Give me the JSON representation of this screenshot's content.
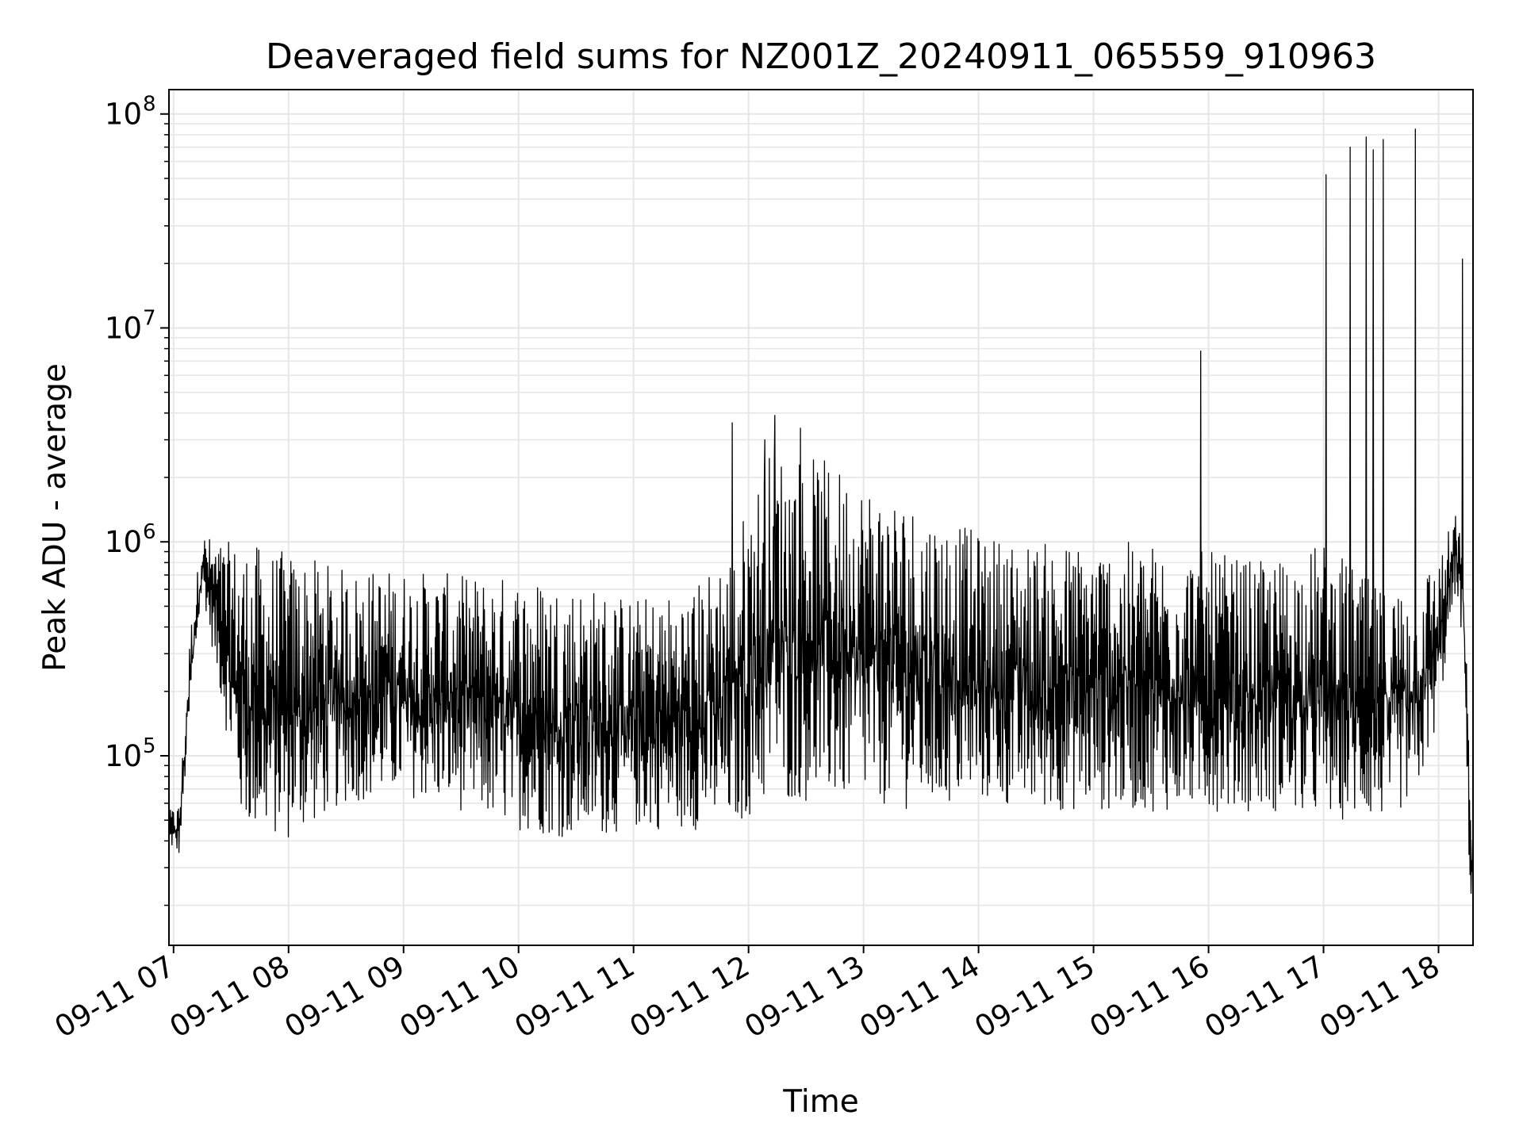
{
  "chart_data": {
    "type": "line",
    "title": "Deaveraged field sums for NZ001Z_20240911_065559_910963",
    "xlabel": "Time",
    "ylabel": "Peak ADU - average",
    "yscale": "log",
    "ylim": [
      13000,
      130000000
    ],
    "xlim_hours": [
      6.96,
      18.3
    ],
    "grid": true,
    "legend": "none",
    "line_color": "#000000",
    "x_ticks": [
      {
        "hour": 7,
        "label": "09-11 07"
      },
      {
        "hour": 8,
        "label": "09-11 08"
      },
      {
        "hour": 9,
        "label": "09-11 09"
      },
      {
        "hour": 10,
        "label": "09-11 10"
      },
      {
        "hour": 11,
        "label": "09-11 11"
      },
      {
        "hour": 12,
        "label": "09-11 12"
      },
      {
        "hour": 13,
        "label": "09-11 13"
      },
      {
        "hour": 14,
        "label": "09-11 14"
      },
      {
        "hour": 15,
        "label": "09-11 15"
      },
      {
        "hour": 16,
        "label": "09-11 16"
      },
      {
        "hour": 17,
        "label": "09-11 17"
      },
      {
        "hour": 18,
        "label": "09-11 18"
      }
    ],
    "y_ticks": [
      {
        "value": 100000,
        "base": "10",
        "exp": "5"
      },
      {
        "value": 1000000,
        "base": "10",
        "exp": "6"
      },
      {
        "value": 10000000,
        "base": "10",
        "exp": "7"
      },
      {
        "value": 100000000,
        "base": "10",
        "exp": "8"
      }
    ],
    "envelope": [
      {
        "hour": 6.96,
        "low": 38000,
        "high": 55000
      },
      {
        "hour": 7.05,
        "low": 34000,
        "high": 60000
      },
      {
        "hour": 7.15,
        "low": 170000,
        "high": 420000
      },
      {
        "hour": 7.25,
        "low": 600000,
        "high": 1100000
      },
      {
        "hour": 7.4,
        "low": 200000,
        "high": 1000000
      },
      {
        "hour": 7.6,
        "low": 45000,
        "high": 1000000
      },
      {
        "hour": 8.0,
        "low": 40000,
        "high": 900000
      },
      {
        "hour": 8.5,
        "low": 60000,
        "high": 750000
      },
      {
        "hour": 9.0,
        "low": 65000,
        "high": 750000
      },
      {
        "hour": 9.5,
        "low": 55000,
        "high": 700000
      },
      {
        "hour": 10.0,
        "low": 45000,
        "high": 700000
      },
      {
        "hour": 10.5,
        "low": 40000,
        "high": 650000
      },
      {
        "hour": 11.0,
        "low": 45000,
        "high": 550000
      },
      {
        "hour": 11.5,
        "low": 45000,
        "high": 600000
      },
      {
        "hour": 11.85,
        "low": 45000,
        "high": 1000000
      },
      {
        "hour": 12.2,
        "low": 60000,
        "high": 2800000
      },
      {
        "hour": 12.6,
        "low": 60000,
        "high": 2500000
      },
      {
        "hour": 13.0,
        "low": 60000,
        "high": 2000000
      },
      {
        "hour": 13.5,
        "low": 55000,
        "high": 1500000
      },
      {
        "hour": 14.0,
        "low": 60000,
        "high": 1100000
      },
      {
        "hour": 14.5,
        "low": 55000,
        "high": 1000000
      },
      {
        "hour": 15.0,
        "low": 55000,
        "high": 1000000
      },
      {
        "hour": 15.5,
        "low": 55000,
        "high": 1000000
      },
      {
        "hour": 16.0,
        "low": 55000,
        "high": 900000
      },
      {
        "hour": 16.5,
        "low": 55000,
        "high": 800000
      },
      {
        "hour": 17.0,
        "low": 50000,
        "high": 1000000
      },
      {
        "hour": 17.5,
        "low": 50000,
        "high": 600000
      },
      {
        "hour": 17.8,
        "low": 60000,
        "high": 700000
      },
      {
        "hour": 18.0,
        "low": 150000,
        "high": 850000
      },
      {
        "hour": 18.15,
        "low": 600000,
        "high": 1400000
      },
      {
        "hour": 18.22,
        "low": 300000,
        "high": 900000
      },
      {
        "hour": 18.27,
        "low": 25000,
        "high": 80000
      },
      {
        "hour": 18.3,
        "low": 18000,
        "high": 45000
      }
    ],
    "spikes": [
      {
        "hour": 11.86,
        "value": 3600000
      },
      {
        "hour": 12.14,
        "value": 3000000
      },
      {
        "hour": 12.23,
        "value": 3900000
      },
      {
        "hour": 12.45,
        "value": 3400000
      },
      {
        "hour": 15.93,
        "value": 7800000
      },
      {
        "hour": 17.02,
        "value": 52000000
      },
      {
        "hour": 17.23,
        "value": 70000000
      },
      {
        "hour": 17.37,
        "value": 78000000
      },
      {
        "hour": 17.43,
        "value": 68000000
      },
      {
        "hour": 17.52,
        "value": 76000000
      },
      {
        "hour": 17.8,
        "value": 85000000
      },
      {
        "hour": 18.21,
        "value": 21000000
      }
    ]
  }
}
